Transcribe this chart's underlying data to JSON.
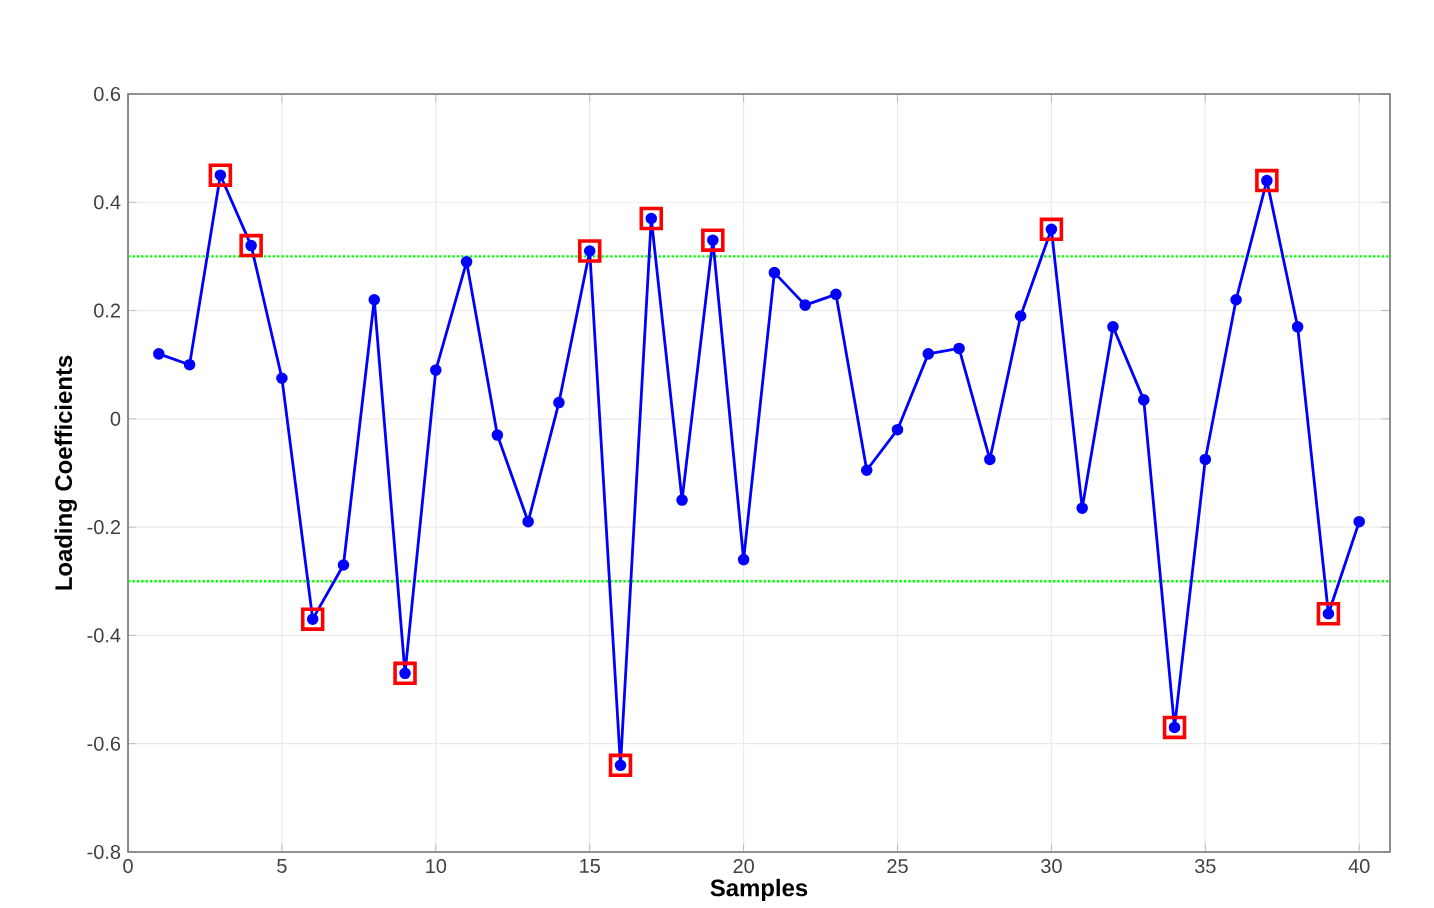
{
  "chart_data": {
    "type": "line",
    "xlabel": "Samples",
    "ylabel": "Loading Coefficients",
    "xlim": [
      0,
      41
    ],
    "ylim": [
      -0.8,
      0.6
    ],
    "xticks": [
      0,
      5,
      10,
      15,
      20,
      25,
      30,
      35,
      40
    ],
    "yticks": [
      -0.8,
      -0.6,
      -0.4,
      -0.2,
      0,
      0.2,
      0.4,
      0.6
    ],
    "grid": true,
    "line_style": "solid",
    "series": [
      {
        "marker": "circle",
        "color": "#0000ff",
        "x": [
          1,
          2,
          3,
          4,
          5,
          6,
          7,
          8,
          9,
          10,
          11,
          12,
          13,
          14,
          15,
          16,
          17,
          18,
          19,
          20,
          21,
          22,
          23,
          24,
          25,
          26,
          27,
          28,
          29,
          30,
          31,
          32,
          33,
          34,
          35,
          36,
          37,
          38,
          39,
          40
        ],
        "values": [
          0.12,
          0.1,
          0.45,
          0.32,
          0.075,
          -0.37,
          -0.27,
          0.22,
          -0.47,
          0.09,
          0.29,
          -0.03,
          -0.19,
          0.03,
          0.31,
          -0.64,
          0.37,
          -0.15,
          0.33,
          -0.26,
          0.27,
          0.21,
          0.23,
          -0.095,
          -0.02,
          0.12,
          0.13,
          -0.075,
          0.19,
          0.35,
          -0.165,
          0.17,
          0.035,
          -0.57,
          -0.075,
          0.22,
          0.44,
          0.17,
          -0.36,
          -0.19
        ]
      },
      {
        "type": "scatter",
        "marker": "square",
        "color": "#ff0000",
        "x": [
          3,
          4,
          6,
          9,
          15,
          16,
          17,
          19,
          30,
          34,
          37,
          39
        ],
        "values": [
          0.45,
          0.32,
          -0.37,
          -0.47,
          0.31,
          -0.64,
          0.37,
          0.33,
          0.35,
          -0.57,
          0.44,
          -0.36
        ]
      }
    ],
    "ref_lines": [
      {
        "axis": "y",
        "value": 0.3,
        "color": "#00ff00",
        "line_style": "dotted"
      },
      {
        "axis": "y",
        "value": -0.3,
        "color": "#00ff00",
        "line_style": "dotted"
      }
    ]
  }
}
